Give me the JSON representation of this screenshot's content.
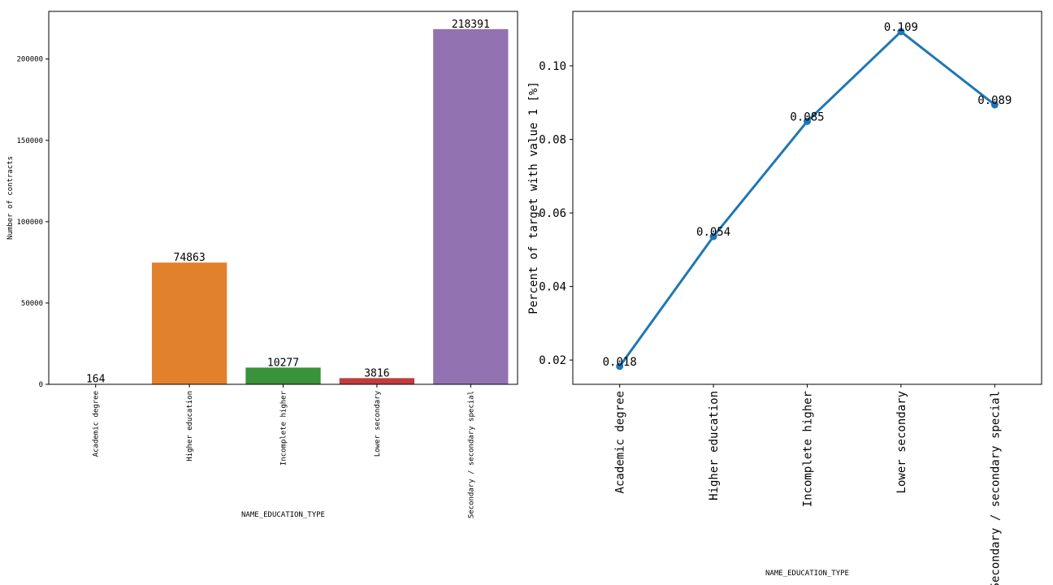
{
  "chart_data": [
    {
      "type": "bar",
      "title": "",
      "xlabel": "NAME_EDUCATION_TYPE",
      "ylabel": "Number of contracts",
      "categories": [
        "Academic degree",
        "Higher education",
        "Incomplete higher",
        "Lower secondary",
        "Secondary / secondary special"
      ],
      "values": [
        164,
        74863,
        10277,
        3816,
        218391
      ],
      "value_labels": [
        "164",
        "74863",
        "10277",
        "3816",
        "218391"
      ],
      "colors": [
        "#3a75b0",
        "#e1812c",
        "#3a923a",
        "#c03d3e",
        "#9372b2"
      ],
      "ylim": [
        0,
        229310
      ],
      "yticks": [
        0,
        50000,
        100000,
        150000,
        200000
      ],
      "ytick_labels": [
        "0",
        "50000",
        "100000",
        "150000",
        "200000"
      ],
      "grid": false,
      "legend": "none"
    },
    {
      "type": "line",
      "title": "",
      "xlabel": "NAME_EDUCATION_TYPE",
      "ylabel": "Percent of target with value 1 [%]",
      "categories": [
        "Academic degree",
        "Higher education",
        "Incomplete higher",
        "Lower secondary",
        "Secondary / secondary special"
      ],
      "values": [
        0.0183,
        0.0536,
        0.0849,
        0.1093,
        0.0894
      ],
      "value_labels": [
        "0.018",
        "0.054",
        "0.085",
        "0.109",
        "0.089"
      ],
      "color": "#1f77b4",
      "ylim": [
        0.0134,
        0.1148
      ],
      "yticks": [
        0.02,
        0.04,
        0.06,
        0.08,
        0.1
      ],
      "ytick_labels": [
        "0.02",
        "0.04",
        "0.06",
        "0.08",
        "0.10"
      ],
      "grid": false,
      "legend": "none"
    }
  ]
}
